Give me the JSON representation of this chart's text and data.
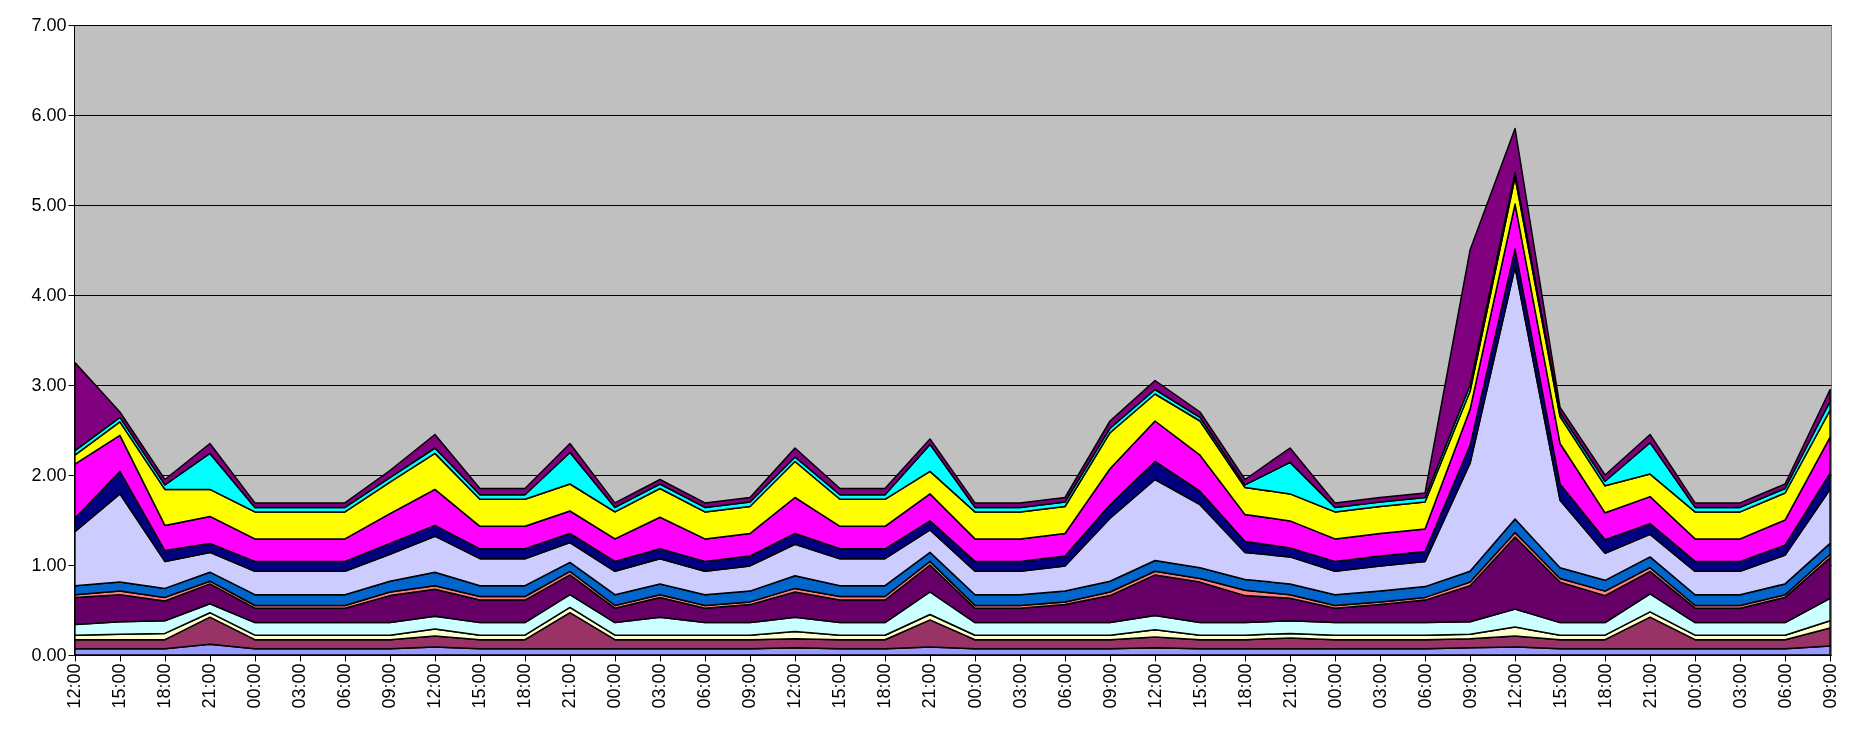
{
  "chart_data": {
    "type": "area",
    "stacked": true,
    "grid": "y",
    "categories": [
      "12:00",
      "15:00",
      "18:00",
      "21:00",
      "00:00",
      "03:00",
      "06:00",
      "09:00",
      "12:00",
      "15:00",
      "18:00",
      "21:00",
      "00:00",
      "03:00",
      "06:00",
      "09:00",
      "12:00",
      "15:00",
      "18:00",
      "21:00",
      "00:00",
      "03:00",
      "06:00",
      "09:00",
      "12:00",
      "15:00",
      "18:00",
      "21:00",
      "00:00",
      "03:00",
      "06:00",
      "09:00",
      "12:00",
      "15:00",
      "18:00",
      "21:00",
      "00:00",
      "03:00",
      "06:00",
      "09:00"
    ],
    "ylim": [
      0,
      7
    ],
    "yticks": [
      {
        "value": 0,
        "label": "0.00"
      },
      {
        "value": 1,
        "label": "1.00"
      },
      {
        "value": 2,
        "label": "2.00"
      },
      {
        "value": 3,
        "label": "3.00"
      },
      {
        "value": 4,
        "label": "4.00"
      },
      {
        "value": 5,
        "label": "5.00"
      },
      {
        "value": 6,
        "label": "6.00"
      },
      {
        "value": 7,
        "label": "7.00"
      }
    ],
    "series": [
      {
        "color": "#9999ff",
        "values": [
          0.07,
          0.07,
          0.07,
          0.12,
          0.07,
          0.07,
          0.07,
          0.07,
          0.09,
          0.07,
          0.07,
          0.07,
          0.07,
          0.07,
          0.07,
          0.07,
          0.08,
          0.07,
          0.07,
          0.09,
          0.07,
          0.07,
          0.07,
          0.07,
          0.08,
          0.07,
          0.07,
          0.07,
          0.07,
          0.07,
          0.07,
          0.08,
          0.09,
          0.07,
          0.07,
          0.07,
          0.07,
          0.07,
          0.07,
          0.1
        ]
      },
      {
        "color": "#993366",
        "values": [
          0.1,
          0.1,
          0.1,
          0.3,
          0.1,
          0.1,
          0.1,
          0.1,
          0.12,
          0.1,
          0.1,
          0.4,
          0.1,
          0.1,
          0.1,
          0.1,
          0.1,
          0.1,
          0.1,
          0.3,
          0.1,
          0.1,
          0.1,
          0.1,
          0.12,
          0.1,
          0.1,
          0.12,
          0.1,
          0.1,
          0.1,
          0.1,
          0.12,
          0.1,
          0.1,
          0.35,
          0.1,
          0.1,
          0.1,
          0.2
        ]
      },
      {
        "color": "#ffffcc",
        "values": [
          0.05,
          0.06,
          0.07,
          0.05,
          0.05,
          0.05,
          0.05,
          0.05,
          0.08,
          0.05,
          0.05,
          0.06,
          0.05,
          0.05,
          0.05,
          0.05,
          0.08,
          0.05,
          0.05,
          0.06,
          0.05,
          0.05,
          0.05,
          0.05,
          0.08,
          0.05,
          0.05,
          0.05,
          0.05,
          0.05,
          0.05,
          0.05,
          0.1,
          0.05,
          0.05,
          0.06,
          0.05,
          0.05,
          0.05,
          0.08
        ]
      },
      {
        "color": "#ccffff",
        "values": [
          0.12,
          0.14,
          0.14,
          0.1,
          0.14,
          0.14,
          0.14,
          0.14,
          0.14,
          0.14,
          0.14,
          0.14,
          0.14,
          0.2,
          0.14,
          0.14,
          0.16,
          0.14,
          0.14,
          0.25,
          0.14,
          0.14,
          0.14,
          0.14,
          0.16,
          0.14,
          0.14,
          0.14,
          0.14,
          0.14,
          0.14,
          0.14,
          0.2,
          0.14,
          0.14,
          0.2,
          0.14,
          0.14,
          0.14,
          0.25
        ]
      },
      {
        "color": "#660066",
        "values": [
          0.3,
          0.3,
          0.22,
          0.22,
          0.16,
          0.16,
          0.16,
          0.3,
          0.3,
          0.25,
          0.25,
          0.22,
          0.16,
          0.22,
          0.16,
          0.2,
          0.28,
          0.25,
          0.25,
          0.3,
          0.16,
          0.16,
          0.2,
          0.3,
          0.45,
          0.45,
          0.3,
          0.25,
          0.16,
          0.2,
          0.25,
          0.4,
          0.8,
          0.45,
          0.3,
          0.25,
          0.16,
          0.16,
          0.28,
          0.45
        ]
      },
      {
        "color": "#ff8080",
        "values": [
          0.03,
          0.04,
          0.04,
          0.03,
          0.03,
          0.03,
          0.03,
          0.04,
          0.04,
          0.04,
          0.04,
          0.04,
          0.03,
          0.03,
          0.03,
          0.03,
          0.04,
          0.04,
          0.04,
          0.04,
          0.03,
          0.03,
          0.03,
          0.04,
          0.04,
          0.04,
          0.06,
          0.04,
          0.03,
          0.03,
          0.03,
          0.04,
          0.05,
          0.04,
          0.05,
          0.04,
          0.03,
          0.03,
          0.03,
          0.04
        ]
      },
      {
        "color": "#0066cc",
        "values": [
          0.1,
          0.1,
          0.1,
          0.1,
          0.12,
          0.12,
          0.12,
          0.12,
          0.15,
          0.12,
          0.12,
          0.1,
          0.12,
          0.12,
          0.12,
          0.12,
          0.14,
          0.12,
          0.12,
          0.1,
          0.12,
          0.12,
          0.12,
          0.12,
          0.12,
          0.12,
          0.12,
          0.12,
          0.12,
          0.12,
          0.12,
          0.12,
          0.15,
          0.12,
          0.12,
          0.12,
          0.12,
          0.12,
          0.12,
          0.12
        ]
      },
      {
        "color": "#ccccff",
        "values": [
          0.6,
          0.98,
          0.3,
          0.22,
          0.26,
          0.26,
          0.26,
          0.3,
          0.4,
          0.3,
          0.3,
          0.22,
          0.26,
          0.28,
          0.26,
          0.28,
          0.35,
          0.3,
          0.3,
          0.25,
          0.26,
          0.26,
          0.28,
          0.7,
          0.9,
          0.7,
          0.3,
          0.3,
          0.26,
          0.28,
          0.28,
          1.2,
          2.8,
          0.75,
          0.3,
          0.25,
          0.26,
          0.26,
          0.32,
          0.6
        ]
      },
      {
        "color": "#000080",
        "values": [
          0.15,
          0.25,
          0.12,
          0.1,
          0.11,
          0.11,
          0.11,
          0.12,
          0.12,
          0.11,
          0.11,
          0.1,
          0.11,
          0.11,
          0.11,
          0.11,
          0.12,
          0.11,
          0.11,
          0.1,
          0.11,
          0.11,
          0.11,
          0.15,
          0.2,
          0.15,
          0.12,
          0.1,
          0.11,
          0.11,
          0.11,
          0.2,
          0.2,
          0.18,
          0.15,
          0.12,
          0.11,
          0.11,
          0.11,
          0.18
        ]
      },
      {
        "color": "#ff00ff",
        "values": [
          0.6,
          0.4,
          0.28,
          0.3,
          0.25,
          0.25,
          0.25,
          0.33,
          0.4,
          0.25,
          0.25,
          0.25,
          0.25,
          0.35,
          0.25,
          0.25,
          0.4,
          0.25,
          0.25,
          0.3,
          0.25,
          0.25,
          0.25,
          0.4,
          0.45,
          0.4,
          0.3,
          0.3,
          0.25,
          0.25,
          0.25,
          0.4,
          0.5,
          0.45,
          0.3,
          0.3,
          0.25,
          0.25,
          0.28,
          0.4
        ]
      },
      {
        "color": "#ffff00",
        "values": [
          0.1,
          0.15,
          0.4,
          0.3,
          0.3,
          0.3,
          0.3,
          0.35,
          0.4,
          0.3,
          0.3,
          0.3,
          0.3,
          0.32,
          0.3,
          0.3,
          0.4,
          0.3,
          0.3,
          0.25,
          0.3,
          0.3,
          0.3,
          0.4,
          0.3,
          0.38,
          0.3,
          0.3,
          0.3,
          0.3,
          0.3,
          0.2,
          0.3,
          0.3,
          0.3,
          0.25,
          0.3,
          0.3,
          0.3,
          0.3
        ]
      },
      {
        "color": "#00ffff",
        "values": [
          0.05,
          0.05,
          0.05,
          0.4,
          0.05,
          0.05,
          0.05,
          0.05,
          0.06,
          0.05,
          0.05,
          0.35,
          0.05,
          0.05,
          0.05,
          0.05,
          0.05,
          0.05,
          0.05,
          0.3,
          0.05,
          0.05,
          0.05,
          0.05,
          0.05,
          0.04,
          0.03,
          0.35,
          0.05,
          0.05,
          0.05,
          0.07,
          0.05,
          0.04,
          0.05,
          0.35,
          0.05,
          0.05,
          0.05,
          0.1
        ]
      },
      {
        "color": "#800080",
        "values": [
          0.98,
          0.06,
          0.06,
          0.11,
          0.05,
          0.05,
          0.05,
          0.08,
          0.15,
          0.07,
          0.07,
          0.1,
          0.05,
          0.05,
          0.05,
          0.05,
          0.1,
          0.07,
          0.07,
          0.06,
          0.05,
          0.05,
          0.05,
          0.08,
          0.1,
          0.06,
          0.06,
          0.16,
          0.05,
          0.05,
          0.05,
          1.5,
          0.49,
          0.06,
          0.07,
          0.09,
          0.05,
          0.05,
          0.05,
          0.13
        ]
      }
    ]
  }
}
